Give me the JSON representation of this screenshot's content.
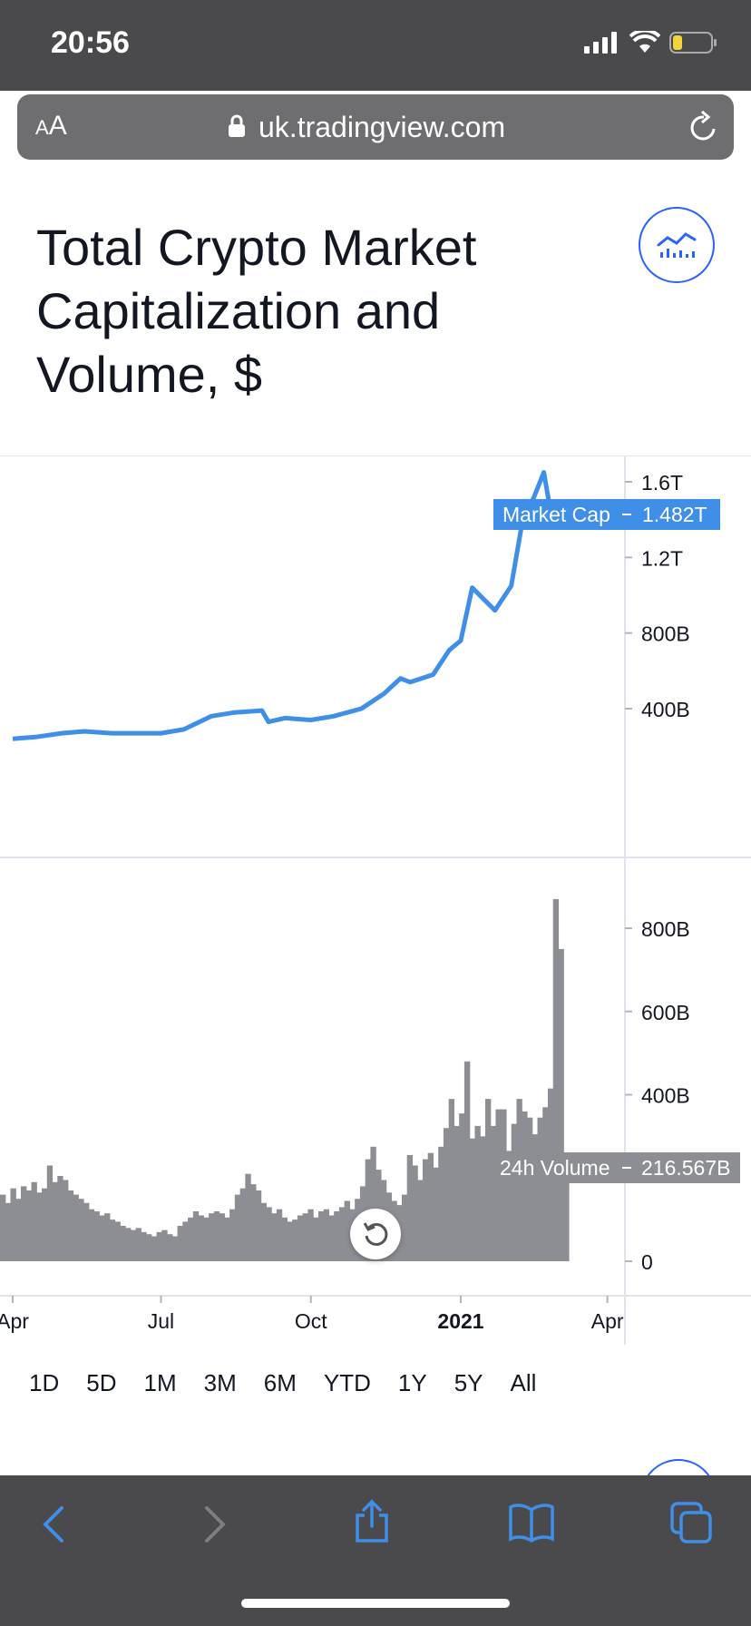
{
  "status": {
    "time": "20:56"
  },
  "browser": {
    "aa_label": "A",
    "aa_label_big": "A",
    "url": "uk.tradingview.com"
  },
  "page": {
    "title": "Total Crypto Market Capitalization and Volume, $"
  },
  "chart_data": [
    {
      "type": "line",
      "series": [
        {
          "name": "Market Cap",
          "color": "#3f8ee8"
        }
      ],
      "x": [
        "2020-04-01",
        "2020-04-15",
        "2020-05-01",
        "2020-05-15",
        "2020-06-01",
        "2020-06-15",
        "2020-07-01",
        "2020-07-15",
        "2020-08-01",
        "2020-08-15",
        "2020-09-01",
        "2020-09-05",
        "2020-09-15",
        "2020-10-01",
        "2020-10-15",
        "2020-11-01",
        "2020-11-15",
        "2020-11-25",
        "2020-12-01",
        "2020-12-15",
        "2020-12-25",
        "2021-01-01",
        "2021-01-08",
        "2021-01-15",
        "2021-01-22",
        "2021-02-01",
        "2021-02-08",
        "2021-02-15",
        "2021-02-21",
        "2021-02-25",
        "2021-03-01",
        "2021-03-07"
      ],
      "values": [
        0.24,
        0.25,
        0.27,
        0.28,
        0.27,
        0.27,
        0.27,
        0.29,
        0.36,
        0.38,
        0.39,
        0.33,
        0.35,
        0.34,
        0.36,
        0.4,
        0.48,
        0.56,
        0.54,
        0.58,
        0.71,
        0.76,
        1.04,
        0.98,
        0.92,
        1.05,
        1.4,
        1.52,
        1.65,
        1.45,
        1.42,
        1.48
      ],
      "yticks": [
        "1.6T",
        "1.2T",
        "800B",
        "400B"
      ],
      "last_label": "Market Cap",
      "last_value": "1.482T"
    },
    {
      "type": "bar",
      "series": [
        {
          "name": "24h Volume",
          "color": "#8c8e94"
        }
      ],
      "values": [
        160,
        140,
        175,
        150,
        180,
        170,
        190,
        165,
        175,
        230,
        190,
        205,
        195,
        170,
        160,
        150,
        140,
        125,
        120,
        110,
        115,
        100,
        95,
        85,
        80,
        75,
        80,
        70,
        65,
        60,
        70,
        75,
        65,
        60,
        85,
        95,
        105,
        120,
        110,
        105,
        115,
        120,
        115,
        105,
        125,
        160,
        175,
        210,
        185,
        170,
        140,
        130,
        115,
        125,
        105,
        95,
        100,
        110,
        115,
        125,
        105,
        120,
        125,
        110,
        120,
        130,
        145,
        125,
        150,
        180,
        245,
        275,
        220,
        195,
        165,
        145,
        135,
        160,
        255,
        230,
        195,
        245,
        260,
        225,
        275,
        320,
        390,
        325,
        355,
        480,
        295,
        325,
        300,
        390,
        325,
        365,
        365,
        265,
        330,
        390,
        360,
        345,
        305,
        345,
        370,
        415,
        870,
        750,
        216
      ],
      "yticks": [
        "800B",
        "600B",
        "400B",
        "0"
      ],
      "last_label": "24h Volume",
      "last_value": "216.567B"
    }
  ],
  "xaxis": {
    "ticks": [
      "Apr",
      "Jul",
      "Oct",
      "2021",
      "Apr"
    ]
  },
  "ranges": [
    "1D",
    "5D",
    "1M",
    "3M",
    "6M",
    "YTD",
    "1Y",
    "5Y",
    "All"
  ],
  "icons": {
    "signal": "signal-bars-icon",
    "wifi": "wifi-icon",
    "battery": "battery-icon",
    "lock": "lock-icon",
    "reload": "reload-icon",
    "back": "back-icon",
    "forward": "forward-icon",
    "share": "share-icon",
    "bookmarks": "book-icon",
    "tabs": "tabs-icon"
  }
}
